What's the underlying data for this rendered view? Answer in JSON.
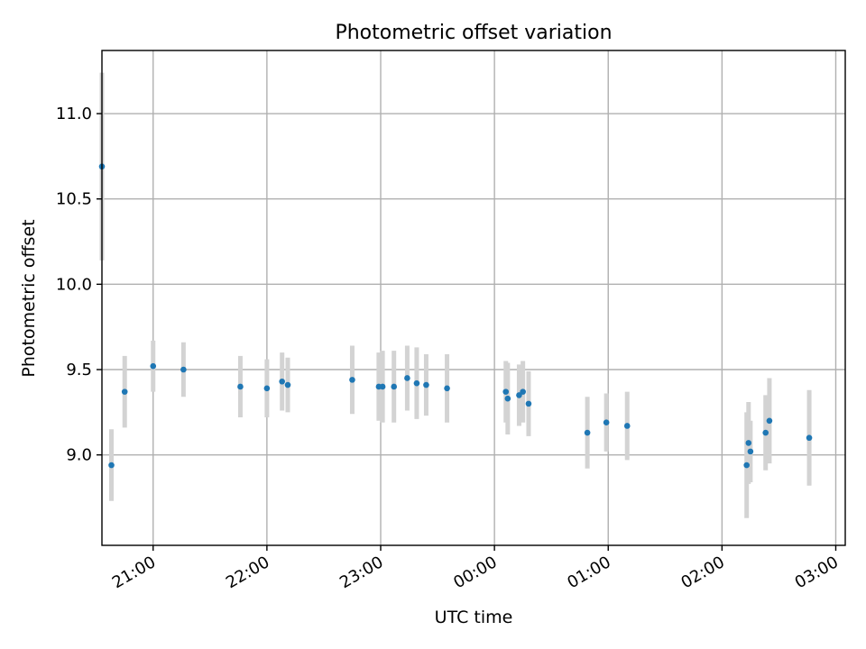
{
  "chart_data": {
    "type": "scatter",
    "title": "Photometric offset variation",
    "xlabel": "UTC time",
    "ylabel": "Photometric offset",
    "x_kind": "time",
    "x_range": [
      "20:33",
      "03:05"
    ],
    "x_ticks": [
      "21:00",
      "22:00",
      "23:00",
      "00:00",
      "01:00",
      "02:00",
      "03:00"
    ],
    "ylim": [
      8.47,
      11.37
    ],
    "y_ticks": [
      "9.0",
      "9.5",
      "10.0",
      "10.5",
      "11.0"
    ],
    "grid": true,
    "colors": {
      "marker": "#1f77b4",
      "errorbar": "#d3d3d3"
    },
    "series": [
      {
        "points": [
          {
            "t": "20:33",
            "y": 10.69,
            "err": 0.55
          },
          {
            "t": "20:38",
            "y": 8.94,
            "err": 0.21
          },
          {
            "t": "20:45",
            "y": 9.37,
            "err": 0.21
          },
          {
            "t": "21:00",
            "y": 9.52,
            "err": 0.15
          },
          {
            "t": "21:16",
            "y": 9.5,
            "err": 0.16
          },
          {
            "t": "21:46",
            "y": 9.4,
            "err": 0.18
          },
          {
            "t": "22:00",
            "y": 9.39,
            "err": 0.17
          },
          {
            "t": "22:08",
            "y": 9.43,
            "err": 0.17
          },
          {
            "t": "22:11",
            "y": 9.41,
            "err": 0.16
          },
          {
            "t": "22:45",
            "y": 9.44,
            "err": 0.2
          },
          {
            "t": "22:59",
            "y": 9.4,
            "err": 0.2
          },
          {
            "t": "23:01",
            "y": 9.4,
            "err": 0.21
          },
          {
            "t": "23:07",
            "y": 9.4,
            "err": 0.21
          },
          {
            "t": "23:14",
            "y": 9.45,
            "err": 0.19
          },
          {
            "t": "23:19",
            "y": 9.42,
            "err": 0.21
          },
          {
            "t": "23:24",
            "y": 9.41,
            "err": 0.18
          },
          {
            "t": "23:35",
            "y": 9.39,
            "err": 0.2
          },
          {
            "t": "00:06",
            "y": 9.37,
            "err": 0.18
          },
          {
            "t": "00:07",
            "y": 9.33,
            "err": 0.21
          },
          {
            "t": "00:13",
            "y": 9.35,
            "err": 0.18
          },
          {
            "t": "00:15",
            "y": 9.37,
            "err": 0.18
          },
          {
            "t": "00:18",
            "y": 9.3,
            "err": 0.19
          },
          {
            "t": "00:49",
            "y": 9.13,
            "err": 0.21
          },
          {
            "t": "00:59",
            "y": 9.19,
            "err": 0.17
          },
          {
            "t": "01:10",
            "y": 9.17,
            "err": 0.2
          },
          {
            "t": "02:13",
            "y": 8.94,
            "err": 0.31
          },
          {
            "t": "02:14",
            "y": 9.07,
            "err": 0.24
          },
          {
            "t": "02:15",
            "y": 9.02,
            "err": 0.18
          },
          {
            "t": "02:23",
            "y": 9.13,
            "err": 0.22
          },
          {
            "t": "02:25",
            "y": 9.2,
            "err": 0.25
          },
          {
            "t": "02:46",
            "y": 9.1,
            "err": 0.28
          }
        ]
      }
    ]
  }
}
